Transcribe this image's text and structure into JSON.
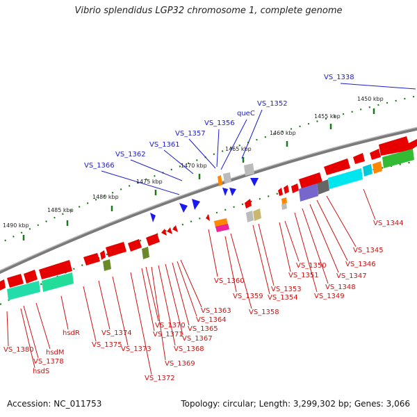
{
  "title": "Vibrio splendidus LGP32 chromosome 1, complete genome",
  "footer": {
    "accession": "Accession: NC_011753",
    "summary": "Topology: circular; Length: 3,299,302 bp; Genes: 3,066"
  },
  "scale_labels": [
    "1450 kbp",
    "1455 kbp",
    "1460 kbp",
    "1465 kbp",
    "1470 kbp",
    "1475 kbp",
    "1480 kbp",
    "1485 kbp",
    "1490 kbp"
  ],
  "blue_labels": [
    "VS_1338",
    "VS_1352",
    "queC",
    "VS_1356",
    "VS_1357",
    "VS_1361",
    "VS_1362",
    "VS_1366"
  ],
  "red_labels": [
    "VS_1344",
    "VS_1345",
    "VS_1346",
    "VS_1347",
    "VS_1348",
    "VS_1349",
    "VS_1350",
    "VS_1351",
    "VS_1353",
    "VS_1354",
    "VS_1358",
    "VS_1359",
    "VS_1360",
    "VS_1363",
    "VS_1364",
    "VS_1365",
    "VS_1367",
    "VS_1368",
    "VS_1369",
    "VS_1370",
    "VS_1371",
    "VS_1372",
    "VS_1373",
    "VS_1374",
    "VS_1375",
    "hsdR",
    "hsdM",
    "VS_1378",
    "hsdS",
    "VS_1380"
  ],
  "colors": {
    "backbone": "#777777",
    "gene_red": "#e60000",
    "gene_blue": "#1a1aee",
    "rna_green": "#33bb33",
    "cyan": "#00e5ee",
    "teal": "#22ddaa",
    "purple": "#7766cc",
    "orange": "#ff8800",
    "olive": "#7a8a2a",
    "label_blue": "#1a1acc",
    "label_red": "#cc1111",
    "ticks": "#1a7a1a"
  }
}
